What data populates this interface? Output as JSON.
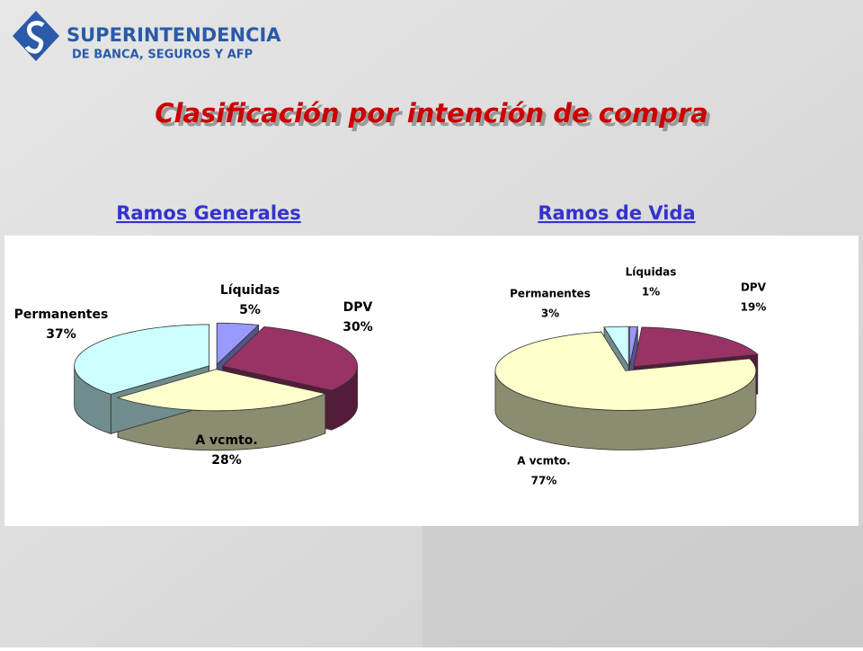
{
  "header": {
    "title": "SUPERINTENDENCIA",
    "subtitle": "DE BANCA, SEGUROS Y AFP"
  },
  "title": "Clasificación por intención de compra",
  "chart_data": [
    {
      "type": "pie",
      "title": "Ramos Generales",
      "categories": [
        "Líquidas",
        "DPV",
        "A vcmto.",
        "Permanentes"
      ],
      "values": [
        5,
        30,
        28,
        37
      ],
      "value_labels": [
        "5%",
        "30%",
        "28%",
        "37%"
      ],
      "colors": [
        "#9999ff",
        "#993366",
        "#ffffcc",
        "#ccffff"
      ]
    },
    {
      "type": "pie",
      "title": "Ramos de Vida",
      "categories": [
        "Líquidas",
        "DPV",
        "A vcmto.",
        "Permanentes"
      ],
      "values": [
        1,
        19,
        77,
        3
      ],
      "value_labels": [
        "1%",
        "19%",
        "77%",
        "3%"
      ],
      "colors": [
        "#9999ff",
        "#993366",
        "#ffffcc",
        "#ccffff"
      ]
    }
  ]
}
